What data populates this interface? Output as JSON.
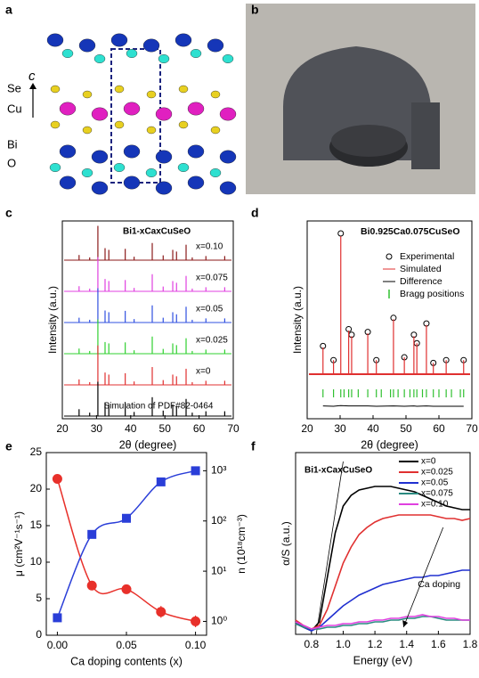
{
  "panel_labels": [
    "a",
    "b",
    "c",
    "d",
    "e",
    "f"
  ],
  "structure_labels": {
    "axis": "c",
    "atoms": [
      "Se",
      "Cu",
      "Bi",
      "O"
    ]
  },
  "chart_data": [
    {
      "type": "stick",
      "title": "Bi1-xCaxCuSeO",
      "xlabel": "2θ (degree)",
      "ylabel": "Intensity (a.u.)",
      "xlim": [
        20,
        70
      ],
      "xticks": [
        20,
        30,
        40,
        50,
        60,
        70
      ],
      "x": [
        24.9,
        28.0,
        30.4,
        32.5,
        33.6,
        38.4,
        41.0,
        46.3,
        49.5,
        52.3,
        53.4,
        56.2,
        58.0,
        62.0,
        67.5
      ],
      "series": [
        {
          "name": "x=0.10",
          "color": "#8b1a1a",
          "values": [
            0.15,
            0.08,
            1.0,
            0.35,
            0.3,
            0.33,
            0.1,
            0.5,
            0.14,
            0.3,
            0.25,
            0.45,
            0.08,
            0.12,
            0.12
          ]
        },
        {
          "name": "x=0.075",
          "color": "#e040e0",
          "values": [
            0.15,
            0.08,
            1.0,
            0.36,
            0.3,
            0.33,
            0.1,
            0.5,
            0.14,
            0.3,
            0.25,
            0.45,
            0.08,
            0.12,
            0.12
          ]
        },
        {
          "name": "x=0.05",
          "color": "#3050e0",
          "values": [
            0.14,
            0.08,
            1.0,
            0.35,
            0.3,
            0.34,
            0.1,
            0.5,
            0.14,
            0.3,
            0.24,
            0.46,
            0.08,
            0.12,
            0.12
          ]
        },
        {
          "name": "x=0.025",
          "color": "#30d030",
          "values": [
            0.15,
            0.08,
            1.0,
            0.34,
            0.3,
            0.33,
            0.1,
            0.5,
            0.14,
            0.3,
            0.25,
            0.45,
            0.08,
            0.12,
            0.12
          ]
        },
        {
          "name": "x=0",
          "color": "#e03030",
          "values": [
            0.16,
            0.08,
            1.15,
            0.36,
            0.3,
            0.34,
            0.1,
            0.52,
            0.14,
            0.3,
            0.25,
            0.47,
            0.08,
            0.12,
            0.12
          ]
        },
        {
          "name": "Simulation of PDF#82-0464",
          "color": "#000000",
          "values": [
            0.2,
            0.1,
            1.0,
            0.4,
            0.35,
            0.38,
            0.12,
            0.55,
            0.16,
            0.34,
            0.28,
            0.5,
            0.1,
            0.14,
            0.14
          ]
        }
      ]
    },
    {
      "type": "refinement",
      "title": "Bi0.925Ca0.075CuSeO",
      "xlabel": "2θ (degree)",
      "ylabel": "Intensity (a.u.)",
      "xlim": [
        20,
        70
      ],
      "xticks": [
        20,
        30,
        40,
        50,
        60,
        70
      ],
      "x": [
        24.8,
        28.0,
        30.2,
        32.6,
        33.5,
        38.4,
        41.0,
        46.2,
        49.5,
        52.4,
        53.3,
        56.2,
        58.3,
        62.2,
        67.5
      ],
      "series": [
        {
          "name": "Experimental",
          "color": "#000000",
          "mark": "circle",
          "values": [
            0.2,
            0.1,
            1.0,
            0.32,
            0.28,
            0.3,
            0.1,
            0.4,
            0.12,
            0.28,
            0.22,
            0.36,
            0.08,
            0.1,
            0.1
          ]
        },
        {
          "name": "Simulated",
          "color": "#e03030",
          "mark": "stick",
          "values": [
            0.19,
            0.1,
            0.98,
            0.31,
            0.27,
            0.29,
            0.1,
            0.39,
            0.12,
            0.27,
            0.22,
            0.35,
            0.08,
            0.1,
            0.1
          ]
        },
        {
          "name": "Difference",
          "color": "#000000",
          "mark": "line",
          "values": [
            0.01,
            0,
            0.02,
            0.01,
            0.01,
            0.01,
            0,
            0.01,
            0,
            0.01,
            0,
            0.01,
            0,
            0,
            0
          ]
        },
        {
          "name": "Bragg positions",
          "color": "#30c030",
          "mark": "tick",
          "x": [
            24.8,
            28.0,
            30.2,
            31.2,
            32.6,
            33.5,
            35.5,
            38.4,
            41.0,
            42.5,
            45.3,
            46.2,
            47.6,
            49.5,
            51.2,
            52.4,
            53.3,
            55.0,
            56.2,
            58.3,
            60.0,
            62.2,
            63.8,
            66.5,
            67.5
          ]
        }
      ]
    },
    {
      "type": "scatter",
      "xlabel": "Ca doping contents (x)",
      "ylabel": "μ (cm²V⁻¹s⁻¹)",
      "y2label": "n (10¹⁸cm⁻³)",
      "xlim": [
        -0.008,
        0.108
      ],
      "xticks": [
        {
          "value": 0,
          "label": "0.00"
        },
        {
          "value": 0.05,
          "label": "0.05"
        },
        {
          "value": 0.1,
          "label": "0.10"
        }
      ],
      "ylim": [
        0,
        25
      ],
      "yticks": [
        0,
        5,
        10,
        15,
        20,
        25
      ],
      "y2lim": [
        0.53,
        2300
      ],
      "y2log": true,
      "y2ticks": [
        {
          "value": 1,
          "label": "10⁰"
        },
        {
          "value": 10,
          "label": "10¹"
        },
        {
          "value": 100,
          "label": "10²"
        },
        {
          "value": 1000,
          "label": "10³"
        }
      ],
      "x": [
        0,
        0.025,
        0.05,
        0.075,
        0.1
      ],
      "series": [
        {
          "color": "#e8302a",
          "marker": "circle",
          "values": [
            21.4,
            6.8,
            6.3,
            3.2,
            1.9
          ],
          "errors": [
            0.5,
            0.6,
            0.5,
            0.8,
            0.8
          ]
        },
        {
          "color": "#2a3ed8",
          "marker": "square",
          "axis": "y2",
          "values": [
            1.18,
            54,
            113,
            600,
            1000
          ]
        }
      ]
    },
    {
      "type": "line",
      "title": "Bi1-xCaxCuSeO",
      "xlabel": "Energy (eV)",
      "ylabel": "α/S (a.u.)",
      "annotation": "Ca doping",
      "xlim": [
        0.7,
        1.8
      ],
      "ylim": [
        -0.02,
        1
      ],
      "xticks": [
        0.8,
        {
          "value": 1.0,
          "label": "1.0"
        },
        1.2,
        1.4,
        1.6,
        1.8
      ],
      "x": [
        0.7,
        0.75,
        0.8,
        0.85,
        0.9,
        0.95,
        1.0,
        1.05,
        1.1,
        1.15,
        1.2,
        1.25,
        1.3,
        1.35,
        1.4,
        1.45,
        1.5,
        1.55,
        1.6,
        1.65,
        1.7,
        1.75,
        1.8
      ],
      "series": [
        {
          "name": "x=0",
          "color": "#000000",
          "values": [
            0.05,
            0.02,
            0.0,
            0.05,
            0.3,
            0.55,
            0.7,
            0.76,
            0.79,
            0.8,
            0.81,
            0.81,
            0.81,
            0.8,
            0.79,
            0.78,
            0.76,
            0.74,
            0.72,
            0.7,
            0.69,
            0.68,
            0.68
          ]
        },
        {
          "name": "x=0.025",
          "color": "#e03030",
          "values": [
            0.06,
            0.03,
            0.01,
            0.03,
            0.12,
            0.25,
            0.38,
            0.47,
            0.54,
            0.58,
            0.61,
            0.63,
            0.64,
            0.65,
            0.65,
            0.65,
            0.65,
            0.65,
            0.64,
            0.63,
            0.63,
            0.62,
            0.63
          ]
        },
        {
          "name": "x=0.05",
          "color": "#2030d0",
          "values": [
            0.04,
            0.02,
            0.0,
            0.02,
            0.06,
            0.1,
            0.14,
            0.17,
            0.2,
            0.22,
            0.24,
            0.26,
            0.27,
            0.28,
            0.29,
            0.3,
            0.3,
            0.31,
            0.31,
            0.32,
            0.33,
            0.34,
            0.34
          ]
        },
        {
          "name": "x=0.075",
          "color": "#2a8a80",
          "values": [
            0.04,
            0.02,
            0.01,
            0.01,
            0.02,
            0.02,
            0.03,
            0.03,
            0.04,
            0.04,
            0.05,
            0.05,
            0.06,
            0.06,
            0.07,
            0.07,
            0.08,
            0.08,
            0.07,
            0.06,
            0.06,
            0.06,
            0.06
          ]
        },
        {
          "name": "x=0.10",
          "color": "#e040e0",
          "values": [
            0.05,
            0.03,
            0.01,
            0.02,
            0.03,
            0.03,
            0.04,
            0.04,
            0.05,
            0.05,
            0.06,
            0.06,
            0.07,
            0.07,
            0.08,
            0.08,
            0.09,
            0.08,
            0.08,
            0.07,
            0.07,
            0.06,
            0.06
          ]
        }
      ]
    }
  ]
}
